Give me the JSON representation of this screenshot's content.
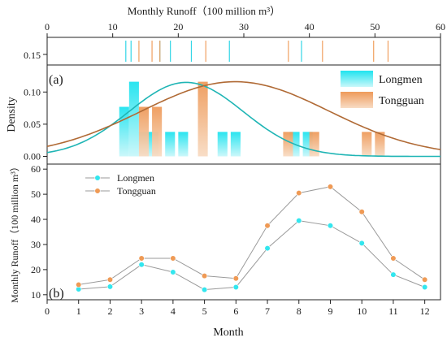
{
  "chart_data": [
    {
      "id": "top-axis",
      "type": "axis",
      "title": "Monthly Runoff（100 million m³）",
      "xlim": [
        0,
        60
      ],
      "ticks": [
        0,
        10,
        20,
        30,
        40,
        50,
        60
      ]
    },
    {
      "id": "rug",
      "type": "rug",
      "ylabel_tick": "0.15",
      "series": [
        {
          "name": "Longmen",
          "color": "#33d6e6",
          "values": [
            12.0,
            12.8,
            17.2,
            18.8,
            22.0,
            27.8,
            38.8
          ]
        },
        {
          "name": "Tongguan",
          "color": "#f0a060",
          "values": [
            14.0,
            16.0,
            17.2,
            24.2,
            36.8,
            42.0,
            49.8,
            52.0
          ]
        }
      ]
    },
    {
      "id": "a",
      "type": "bar",
      "panel_label": "(a)",
      "ylabel": "Density",
      "xlim": [
        0,
        60
      ],
      "ylim": [
        -0.012,
        0.142
      ],
      "yticks": [
        "0.00",
        "0.05",
        "0.10"
      ],
      "ytick_values": [
        0.0,
        0.05,
        0.1
      ],
      "legend": "top-right",
      "series": [
        {
          "name": "Longmen",
          "color": "#33e0ee",
          "bins": [
            [
              11,
              12.5
            ],
            [
              12.5,
              14
            ],
            [
              14,
              15.5
            ],
            [
              15.5,
              17
            ],
            [
              18,
              19.5
            ],
            [
              20,
              21.5
            ],
            [
              26,
              27.5
            ],
            [
              28,
              29.5
            ],
            [
              37,
              38.5
            ],
            [
              39,
              40.5
            ]
          ],
          "values": [
            0.077,
            0.116,
            0.038,
            0.038,
            0.038,
            0.038,
            0.038,
            0.038,
            0.038,
            0.038
          ],
          "curve": {
            "mean": 21.2,
            "sd": 8.7,
            "scale": 0.115
          }
        },
        {
          "name": "Tongguan",
          "color": "#f0a060",
          "bins": [
            [
              14,
              15.5
            ],
            [
              16,
              17.5
            ],
            [
              23,
              24.5
            ],
            [
              36,
              37.5
            ],
            [
              40,
              41.5
            ],
            [
              48,
              49.5
            ],
            [
              50,
              51.5
            ]
          ],
          "values": [
            0.077,
            0.077,
            0.116,
            0.038,
            0.038,
            0.038,
            0.038
          ],
          "curve": {
            "mean": 28.7,
            "sd": 14.3,
            "scale": 0.116
          }
        }
      ]
    },
    {
      "id": "b",
      "type": "line",
      "panel_label": "(b)",
      "xlabel": "Month",
      "ylabel": "Monthly Runoff（100 million m³）",
      "xlim": [
        0,
        12.5
      ],
      "ylim": [
        8,
        62
      ],
      "xticks": [
        0,
        1,
        2,
        3,
        4,
        5,
        6,
        7,
        8,
        9,
        10,
        11,
        12
      ],
      "yticks": [
        10,
        20,
        30,
        40,
        50,
        60
      ],
      "legend": "top-left",
      "x": [
        1,
        2,
        3,
        4,
        5,
        6,
        7,
        8,
        9,
        10,
        11,
        12
      ],
      "series": [
        {
          "name": "Longmen",
          "color": "#33e6ee",
          "values": [
            12.2,
            13.2,
            22.0,
            19.0,
            12.0,
            13.0,
            28.5,
            39.5,
            37.5,
            30.5,
            18.0,
            13.0
          ]
        },
        {
          "name": "Tongguan",
          "color": "#ef9a55",
          "values": [
            14.0,
            16.0,
            24.5,
            24.5,
            17.5,
            16.5,
            37.5,
            50.5,
            53.0,
            43.0,
            24.5,
            16.0
          ]
        }
      ]
    }
  ]
}
